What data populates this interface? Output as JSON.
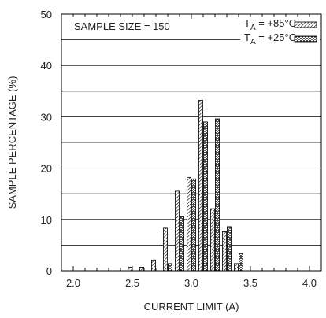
{
  "chart_data": {
    "type": "bar",
    "xlabel": "CURRENT LIMIT (A)",
    "ylabel": "SAMPLE PERCENTAGE (%)",
    "xlim": [
      1.9,
      4.1
    ],
    "ylim": [
      0,
      50
    ],
    "x_ticks": [
      "2.0",
      "2.5",
      "3.0",
      "3.5",
      "4.0"
    ],
    "y_ticks": [
      "0",
      "10",
      "20",
      "30",
      "40",
      "50"
    ],
    "grid": true,
    "annotation": "SAMPLE SIZE = 150",
    "legend_position": "top-right",
    "series": [
      {
        "name": "TA = +85°C",
        "legend": {
          "base": "T",
          "sub": "A",
          "rest": " = +85°C"
        },
        "pattern": "diagonal-hatch",
        "x": [
          2.48,
          2.58,
          2.68,
          2.78,
          2.88,
          2.98,
          3.08,
          3.18,
          3.28,
          3.38
        ],
        "values": [
          0.7,
          0.7,
          2.1,
          8.3,
          15.5,
          18.2,
          33.2,
          12.1,
          7.6,
          1.4
        ]
      },
      {
        "name": "TA = +25°C",
        "legend": {
          "base": "T",
          "sub": "A",
          "rest": " = +25°C"
        },
        "pattern": "zigzag-hatch",
        "x": [
          2.82,
          2.92,
          3.02,
          3.12,
          3.22,
          3.32,
          3.42
        ],
        "values": [
          1.4,
          10.5,
          17.9,
          29.0,
          29.6,
          8.6,
          3.4
        ]
      }
    ]
  }
}
